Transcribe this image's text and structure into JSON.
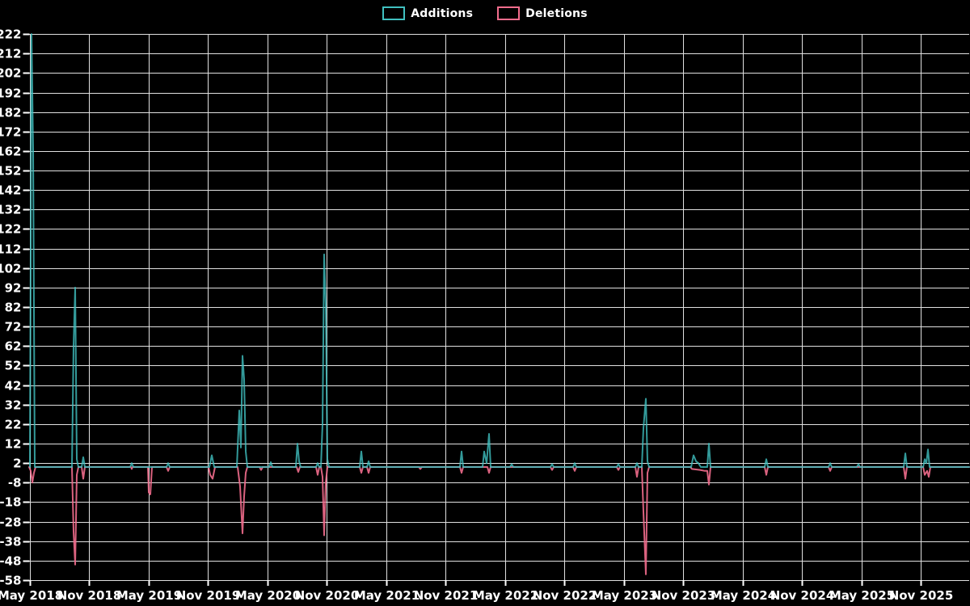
{
  "legend": {
    "items": [
      {
        "label": "Additions",
        "color": "#40c0c0"
      },
      {
        "label": "Deletions",
        "color": "#f26d8d"
      }
    ]
  },
  "chart_data": {
    "type": "line",
    "title": "",
    "xlabel": "",
    "ylabel": "",
    "background": "#000000",
    "grid": true,
    "grid_color": "#e0e0e0",
    "text_color": "#ffffff",
    "legend_position": "top-center",
    "ylim": [
      -58,
      222
    ],
    "y_tick_step": 10,
    "y_ticks": [
      222,
      212,
      202,
      192,
      182,
      172,
      162,
      152,
      142,
      132,
      122,
      112,
      102,
      92,
      82,
      72,
      62,
      52,
      42,
      32,
      22,
      12,
      2,
      -8,
      -18,
      -28,
      -38,
      -48,
      -58
    ],
    "x_tick_labels": [
      "May 2018",
      "Nov 2018",
      "May 2019",
      "Nov 2019",
      "May 2020",
      "Nov 2020",
      "May 2021",
      "Nov 2021",
      "May 2022",
      "Nov 2022",
      "May 2023",
      "Nov 2023",
      "May 2024",
      "Nov 2024",
      "May 2025",
      "Nov 2025"
    ],
    "x_unit": "screenshot pixel position of weekly data point",
    "series": [
      {
        "name": "Additions",
        "color": "#40c0c0",
        "opacity": 0.8,
        "points": [
          [
            37,
            0
          ],
          [
            39,
            222
          ],
          [
            41,
            162
          ],
          [
            43,
            0
          ],
          [
            89,
            0
          ],
          [
            91,
            62
          ],
          [
            93,
            92
          ],
          [
            95,
            4
          ],
          [
            97,
            0
          ],
          [
            101,
            0
          ],
          [
            103,
            5
          ],
          [
            105,
            0
          ],
          [
            161,
            0
          ],
          [
            163,
            2
          ],
          [
            165,
            0
          ],
          [
            206,
            0
          ],
          [
            208,
            2
          ],
          [
            210,
            0
          ],
          [
            259,
            0
          ],
          [
            262,
            6
          ],
          [
            265,
            0
          ],
          [
            293,
            0
          ],
          [
            296,
            29
          ],
          [
            298,
            10
          ],
          [
            300,
            57
          ],
          [
            302,
            45
          ],
          [
            304,
            8
          ],
          [
            306,
            0
          ],
          [
            333,
            0
          ],
          [
            335,
            2.5
          ],
          [
            337,
            0
          ],
          [
            366,
            0
          ],
          [
            368,
            12
          ],
          [
            370,
            3
          ],
          [
            372,
            0
          ],
          [
            391,
            0
          ],
          [
            393,
            2
          ],
          [
            395,
            0
          ],
          [
            397,
            0
          ],
          [
            399,
            22
          ],
          [
            401,
            109
          ],
          [
            403,
            83
          ],
          [
            405,
            4
          ],
          [
            407,
            0
          ],
          [
            445,
            0
          ],
          [
            447,
            8
          ],
          [
            449,
            0
          ],
          [
            454,
            0
          ],
          [
            456,
            3
          ],
          [
            458,
            0
          ],
          [
            569,
            0
          ],
          [
            571,
            8
          ],
          [
            573,
            0
          ],
          [
            597,
            0
          ],
          [
            599,
            8
          ],
          [
            602,
            2
          ],
          [
            605,
            17
          ],
          [
            607,
            0
          ],
          [
            631,
            0
          ],
          [
            633,
            1.5
          ],
          [
            635,
            0
          ],
          [
            681,
            0
          ],
          [
            683,
            1.5
          ],
          [
            685,
            0
          ],
          [
            709,
            0
          ],
          [
            711,
            2
          ],
          [
            713,
            0
          ],
          [
            763,
            0
          ],
          [
            765,
            1.5
          ],
          [
            767,
            0
          ],
          [
            786,
            0
          ],
          [
            788,
            2
          ],
          [
            790,
            0
          ],
          [
            794,
            0
          ],
          [
            796,
            20
          ],
          [
            799,
            35
          ],
          [
            801,
            3
          ],
          [
            803,
            0
          ],
          [
            855,
            0
          ],
          [
            858,
            6
          ],
          [
            861,
            3
          ],
          [
            864,
            2
          ],
          [
            867,
            0
          ],
          [
            875,
            0
          ],
          [
            877,
            12
          ],
          [
            879,
            0
          ],
          [
            946,
            0
          ],
          [
            948,
            4
          ],
          [
            950,
            0
          ],
          [
            1025,
            0
          ],
          [
            1027,
            2
          ],
          [
            1029,
            0
          ],
          [
            1060,
            0
          ],
          [
            1062,
            1.5
          ],
          [
            1064,
            0
          ],
          [
            1118,
            0
          ],
          [
            1120,
            7
          ],
          [
            1122,
            0
          ],
          [
            1142,
            0
          ],
          [
            1144,
            4
          ],
          [
            1146,
            2
          ],
          [
            1148,
            9
          ],
          [
            1150,
            0
          ],
          [
            1199,
            0
          ]
        ]
      },
      {
        "name": "Deletions",
        "color": "#f26d8d",
        "opacity": 0.9,
        "points": [
          [
            36,
            0
          ],
          [
            38,
            -2
          ],
          [
            40,
            -8
          ],
          [
            42,
            -3
          ],
          [
            44,
            0
          ],
          [
            89,
            0
          ],
          [
            91,
            -33
          ],
          [
            93,
            -50
          ],
          [
            95,
            -4
          ],
          [
            97,
            0
          ],
          [
            101,
            0
          ],
          [
            103,
            -6
          ],
          [
            105,
            0
          ],
          [
            162,
            0
          ],
          [
            163,
            -1
          ],
          [
            164,
            0
          ],
          [
            183,
            0
          ],
          [
            184,
            -13
          ],
          [
            186,
            -14
          ],
          [
            188,
            0
          ],
          [
            206,
            0
          ],
          [
            208,
            -2
          ],
          [
            210,
            0
          ],
          [
            258,
            0
          ],
          [
            260,
            -4
          ],
          [
            263,
            -6
          ],
          [
            266,
            0
          ],
          [
            294,
            0
          ],
          [
            297,
            -10
          ],
          [
            300,
            -34
          ],
          [
            302,
            -15
          ],
          [
            304,
            -3
          ],
          [
            306,
            0
          ],
          [
            321,
            0
          ],
          [
            323,
            -1.5
          ],
          [
            325,
            0
          ],
          [
            367,
            0
          ],
          [
            369,
            -2.5
          ],
          [
            371,
            0
          ],
          [
            391,
            0
          ],
          [
            393,
            -4
          ],
          [
            395,
            0
          ],
          [
            397,
            0
          ],
          [
            399,
            -5
          ],
          [
            401,
            -35
          ],
          [
            403,
            -8
          ],
          [
            405,
            0
          ],
          [
            445,
            0
          ],
          [
            447,
            -3
          ],
          [
            449,
            0
          ],
          [
            454,
            0
          ],
          [
            456,
            -3
          ],
          [
            458,
            0
          ],
          [
            518,
            0
          ],
          [
            520,
            -1
          ],
          [
            522,
            0
          ],
          [
            569,
            0
          ],
          [
            571,
            -3
          ],
          [
            573,
            0
          ],
          [
            603,
            0
          ],
          [
            605,
            -3
          ],
          [
            607,
            0
          ],
          [
            681,
            0
          ],
          [
            683,
            -1.5
          ],
          [
            685,
            0
          ],
          [
            709,
            0
          ],
          [
            711,
            -2
          ],
          [
            713,
            0
          ],
          [
            763,
            0
          ],
          [
            765,
            -1.5
          ],
          [
            767,
            0
          ],
          [
            786,
            0
          ],
          [
            788,
            -5
          ],
          [
            790,
            0
          ],
          [
            794,
            0
          ],
          [
            796,
            -23
          ],
          [
            799,
            -55
          ],
          [
            801,
            -3
          ],
          [
            803,
            0
          ],
          [
            854,
            0
          ],
          [
            856,
            -1
          ],
          [
            866,
            -1.5
          ],
          [
            872,
            -2
          ],
          [
            875,
            -2
          ],
          [
            877,
            -9
          ],
          [
            879,
            0
          ],
          [
            946,
            0
          ],
          [
            948,
            -4
          ],
          [
            950,
            0
          ],
          [
            1025,
            0
          ],
          [
            1027,
            -2
          ],
          [
            1029,
            0
          ],
          [
            1118,
            0
          ],
          [
            1120,
            -6
          ],
          [
            1122,
            0
          ],
          [
            1142,
            0
          ],
          [
            1144,
            -4
          ],
          [
            1147,
            -2
          ],
          [
            1149,
            -5
          ],
          [
            1151,
            0
          ],
          [
            1199,
            0
          ]
        ]
      }
    ]
  }
}
